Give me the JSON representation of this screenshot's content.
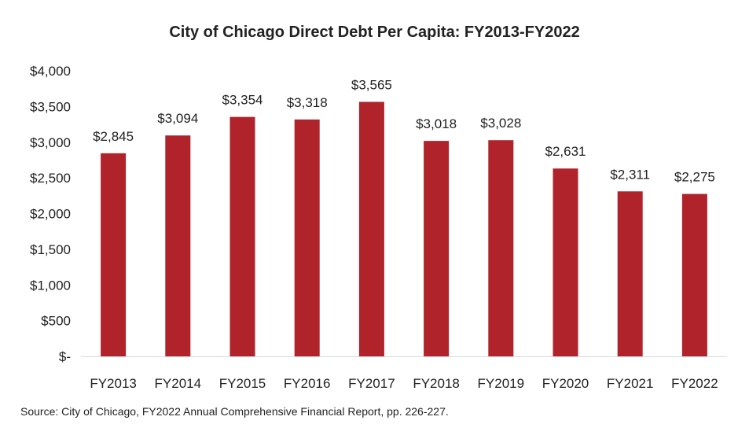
{
  "chart_data": {
    "type": "bar",
    "title": "City of Chicago Direct Debt Per Capita: FY2013-FY2022",
    "categories": [
      "FY2013",
      "FY2014",
      "FY2015",
      "FY2016",
      "FY2017",
      "FY2018",
      "FY2019",
      "FY2020",
      "FY2021",
      "FY2022"
    ],
    "values": [
      2845,
      3094,
      3354,
      3318,
      3565,
      3018,
      3028,
      2631,
      2311,
      2275
    ],
    "data_labels": [
      "$2,845",
      "$3,094",
      "$3,354",
      "$3,318",
      "$3,565",
      "$3,018",
      "$3,028",
      "$2,631",
      "$2,311",
      "$2,275"
    ],
    "y_ticks": [
      0,
      500,
      1000,
      1500,
      2000,
      2500,
      3000,
      3500,
      4000
    ],
    "y_tick_labels": [
      "$-",
      "$500",
      "$1,000",
      "$1,500",
      "$2,000",
      "$2,500",
      "$3,000",
      "$3,500",
      "$4,000"
    ],
    "ylim": [
      0,
      4000
    ],
    "grid": false,
    "bar_color": "#b0232a",
    "source": "Source: City of Chicago, FY2022 Annual Comprehensive Financial Report, pp. 226-227."
  }
}
